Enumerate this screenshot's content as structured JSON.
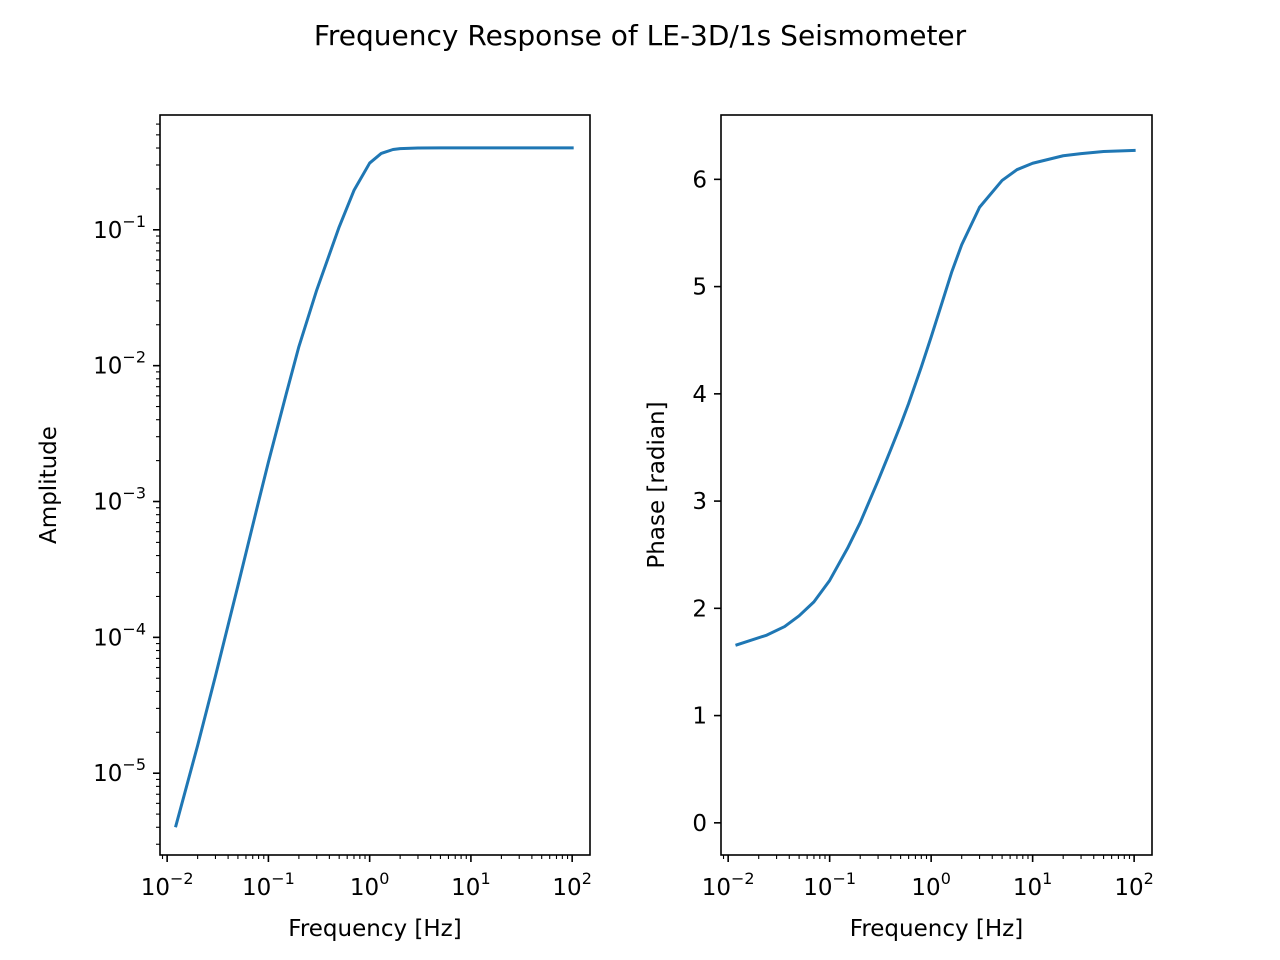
{
  "figure": {
    "title": "Frequency Response of LE-3D/1s Seismometer"
  },
  "colors": {
    "series": "#1f77b4"
  },
  "chart_data": [
    {
      "type": "line",
      "xscale": "log",
      "yscale": "log",
      "xlabel": "Frequency [Hz]",
      "ylabel": "Amplitude",
      "xlim": [
        0.0085,
        150
      ],
      "ylim": [
        2.5e-06,
        0.7
      ],
      "xticks": [
        0.01,
        0.1,
        1,
        10,
        100
      ],
      "xtick_labels": [
        {
          "base": "10",
          "exp": "−2"
        },
        {
          "base": "10",
          "exp": "−1"
        },
        {
          "base": "10",
          "exp": "0"
        },
        {
          "base": "10",
          "exp": "1"
        },
        {
          "base": "10",
          "exp": "2"
        }
      ],
      "yticks": [
        1e-05,
        0.0001,
        0.001,
        0.01,
        0.1
      ],
      "ytick_labels": [
        {
          "base": "10",
          "exp": "−5"
        },
        {
          "base": "10",
          "exp": "−4"
        },
        {
          "base": "10",
          "exp": "−3"
        },
        {
          "base": "10",
          "exp": "−2"
        },
        {
          "base": "10",
          "exp": "−1"
        }
      ],
      "grid": false,
      "series": [
        {
          "x": [
            0.0122,
            0.02,
            0.03,
            0.05,
            0.08,
            0.1,
            0.15,
            0.2,
            0.3,
            0.5,
            0.7,
            1.0,
            1.3,
            1.7,
            2.0,
            3.0,
            5.0,
            10,
            30,
            100
          ],
          "y": [
            4.1e-06,
            1.6e-05,
            5.2e-05,
            0.00024,
            0.001,
            0.00195,
            0.0062,
            0.0138,
            0.036,
            0.105,
            0.195,
            0.31,
            0.365,
            0.39,
            0.396,
            0.4,
            0.401,
            0.401,
            0.401,
            0.401
          ]
        }
      ]
    },
    {
      "type": "line",
      "xscale": "log",
      "yscale": "linear",
      "xlabel": "Frequency [Hz]",
      "ylabel": "Phase [radian]",
      "xlim": [
        0.0085,
        150
      ],
      "ylim": [
        -0.3,
        6.6
      ],
      "xticks": [
        0.01,
        0.1,
        1,
        10,
        100
      ],
      "xtick_labels": [
        {
          "base": "10",
          "exp": "−2"
        },
        {
          "base": "10",
          "exp": "−1"
        },
        {
          "base": "10",
          "exp": "0"
        },
        {
          "base": "10",
          "exp": "1"
        },
        {
          "base": "10",
          "exp": "2"
        }
      ],
      "yticks": [
        0,
        1,
        2,
        3,
        4,
        5,
        6
      ],
      "ytick_labels": [
        "0",
        "1",
        "2",
        "3",
        "4",
        "5",
        "6"
      ],
      "grid": false,
      "series": [
        {
          "x": [
            0.0122,
            0.024,
            0.036,
            0.05,
            0.07,
            0.1,
            0.15,
            0.2,
            0.3,
            0.4,
            0.5,
            0.6,
            0.8,
            1.0,
            1.3,
            1.6,
            2.0,
            3.0,
            5.0,
            7.0,
            10,
            20,
            30,
            50,
            100
          ],
          "y": [
            1.66,
            1.75,
            1.83,
            1.93,
            2.06,
            2.26,
            2.56,
            2.8,
            3.19,
            3.48,
            3.71,
            3.91,
            4.25,
            4.53,
            4.87,
            5.14,
            5.39,
            5.74,
            5.99,
            6.09,
            6.15,
            6.22,
            6.24,
            6.26,
            6.27
          ]
        }
      ]
    }
  ]
}
